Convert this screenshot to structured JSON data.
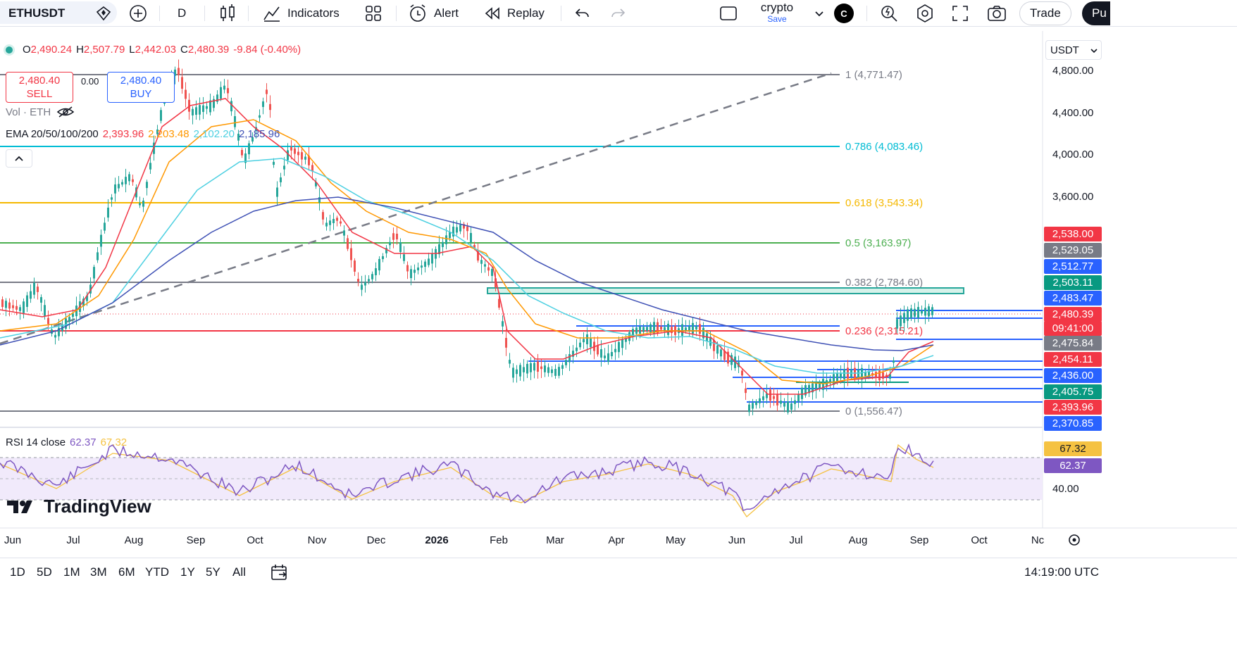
{
  "toolbar": {
    "symbol": "ETHUSDT",
    "interval": "D",
    "indicators_label": "Indicators",
    "alert_label": "Alert",
    "replay_label": "Replay",
    "layout_name": "crypto",
    "layout_save": "Save",
    "avatar_letter": "C",
    "trade_label": "Trade",
    "publish_label": "Pu"
  },
  "legend": {
    "open_key": "O",
    "open": "2,490.24",
    "high_key": "H",
    "high": "2,507.79",
    "low_key": "L",
    "low": "2,442.03",
    "close_key": "C",
    "close": "2,480.39",
    "change": "-9.84 (-0.40%)",
    "sell_price": "2,480.40",
    "sell_label": "SELL",
    "buy_price": "2,480.40",
    "buy_label": "BUY",
    "spread": "0.00",
    "vol_label": "Vol · ETH",
    "ema_label": "EMA 20/50/100/200",
    "ema_values": [
      "2,393.96",
      "2,203.48",
      "2,102.20",
      "2,185.96"
    ],
    "rsi_label": "RSI 14 close",
    "rsi_values": [
      "62.37",
      "67.32"
    ],
    "logo_text": "TradingView"
  },
  "colors": {
    "up": "#26a69a",
    "down": "#ef5350",
    "ema20": "#f23645",
    "ema50": "#ff9800",
    "ema100": "#4dd0e1",
    "ema200": "#3f51b5",
    "rsi": "#7e57c2",
    "rsi_ma": "#f5c242",
    "fib_1": "#787b86",
    "fib_0786": "#00bcd4",
    "fib_0618": "#f5b800",
    "fib_05": "#4caf50",
    "fib_0382": "#787b86",
    "fib_0236": "#f23645",
    "fib_0": "#787b86"
  },
  "price_scale": {
    "currency": "USDT",
    "ticks": [
      "4,800.00",
      "4,400.00",
      "4,000.00",
      "3,600.00",
      "40.00"
    ],
    "labels": [
      {
        "text": "2,538.00",
        "color": "#f23645"
      },
      {
        "text": "2,529.05",
        "color": "#787b86"
      },
      {
        "text": "2,512.77",
        "color": "#2962ff"
      },
      {
        "text": "2,503.11",
        "color": "#089981"
      },
      {
        "text": "2,483.47",
        "color": "#2962ff"
      },
      {
        "text": "2,480.39",
        "color": "#f23645"
      },
      {
        "text": "09:41:00",
        "color": "#f23645"
      },
      {
        "text": "2,475.84",
        "color": "#787b86"
      },
      {
        "text": "2,454.11",
        "color": "#f23645"
      },
      {
        "text": "2,436.00",
        "color": "#2962ff"
      },
      {
        "text": "2,405.75",
        "color": "#089981"
      },
      {
        "text": "2,393.96",
        "color": "#f23645"
      },
      {
        "text": "2,370.85",
        "color": "#2962ff"
      }
    ],
    "rsi_labels": [
      {
        "text": "67.32",
        "color": "#f5c242",
        "dark": true
      },
      {
        "text": "62.37",
        "color": "#7e57c2",
        "dark": false
      }
    ]
  },
  "fib": [
    {
      "level": "1 (4,771.47)",
      "key": "fib_1"
    },
    {
      "level": "0.786 (4,083.46)",
      "key": "fib_0786"
    },
    {
      "level": "0.618 (3,543.34)",
      "key": "fib_0618"
    },
    {
      "level": "0.5 (3,163.97)",
      "key": "fib_05"
    },
    {
      "level": "0.382 (2,784.60)",
      "key": "fib_0382"
    },
    {
      "level": "0.236 (2,315.21)",
      "key": "fib_0236"
    },
    {
      "level": "0 (1,556.47)",
      "key": "fib_0"
    }
  ],
  "time_axis": [
    "Jun",
    "Jul",
    "Aug",
    "Sep",
    "Oct",
    "Nov",
    "Dec",
    "2026",
    "Feb",
    "Mar",
    "Apr",
    "May",
    "Jun",
    "Jul",
    "Aug",
    "Sep",
    "Oct",
    "Nc"
  ],
  "bottombar": {
    "ranges": [
      "1D",
      "5D",
      "1M",
      "3M",
      "6M",
      "YTD",
      "1Y",
      "5Y",
      "All"
    ],
    "clock": "14:19:00 UTC"
  }
}
